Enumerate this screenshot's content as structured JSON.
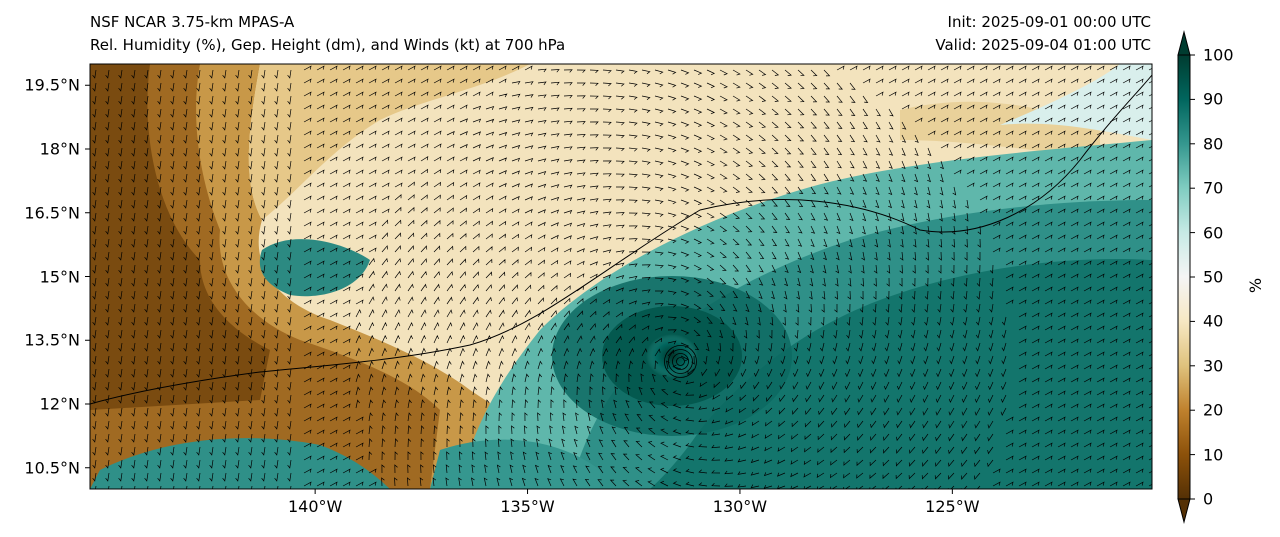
{
  "header": {
    "model": "NSF NCAR 3.75-km MPAS-A",
    "fields": "Rel. Humidity (%), Gep. Height (dm), and Winds (kt) at 700 hPa",
    "init": "Init: 2025-09-01 00:00 UTC",
    "valid": "Valid: 2025-09-04 01:00 UTC"
  },
  "map": {
    "lat_ticks": [
      {
        "value": 19.5,
        "label": "19.5°N"
      },
      {
        "value": 18,
        "label": "18°N"
      },
      {
        "value": 16.5,
        "label": "16.5°N"
      },
      {
        "value": 15,
        "label": "15°N"
      },
      {
        "value": 13.5,
        "label": "13.5°N"
      },
      {
        "value": 12,
        "label": "12°N"
      },
      {
        "value": 10.5,
        "label": "10.5°N"
      }
    ],
    "lon_ticks": [
      {
        "value": -140,
        "label": "140°W"
      },
      {
        "value": -135,
        "label": "135°W"
      },
      {
        "value": -130,
        "label": "130°W"
      },
      {
        "value": -125,
        "label": "125°W"
      }
    ],
    "lat_range": [
      10.0,
      20.0
    ],
    "lon_range": [
      -145.3,
      -120.3
    ],
    "cyclone_center": {
      "lat": 13.0,
      "lon": -131.4
    }
  },
  "colorbar": {
    "unit": "%",
    "ticks": [
      0,
      10,
      20,
      30,
      40,
      50,
      60,
      70,
      80,
      90,
      100
    ],
    "tick_labels": [
      "0",
      "10",
      "20",
      "30",
      "40",
      "50",
      "60",
      "70",
      "80",
      "90",
      "100"
    ],
    "range": [
      0,
      100
    ],
    "colors": [
      "#543005",
      "#8c510a",
      "#bf812d",
      "#dfc27d",
      "#f6e8c3",
      "#f5f5f5",
      "#c7eae5",
      "#80cdc1",
      "#35978f",
      "#01665e",
      "#003c30"
    ]
  }
}
